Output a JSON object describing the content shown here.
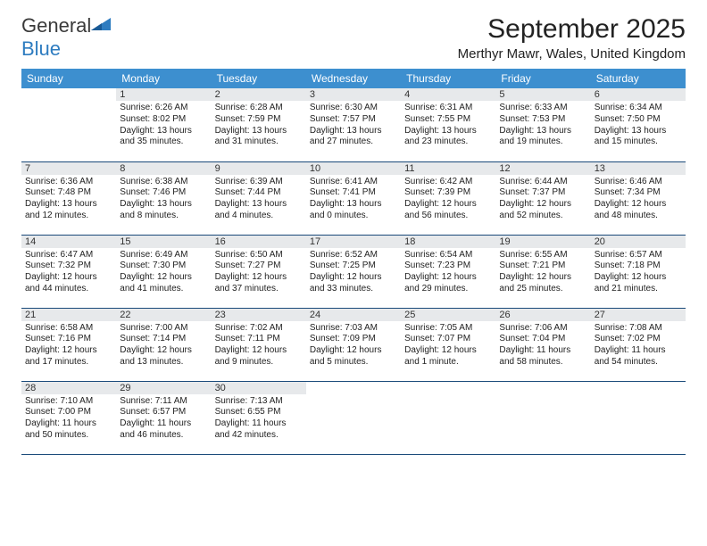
{
  "logo": {
    "word1": "General",
    "word2": "Blue",
    "color1": "#3a3a3a",
    "color2": "#2e7cc0",
    "tri_color": "#2e7cc0"
  },
  "title": "September 2025",
  "location": "Merthyr Mawr, Wales, United Kingdom",
  "columns": [
    "Sunday",
    "Monday",
    "Tuesday",
    "Wednesday",
    "Thursday",
    "Friday",
    "Saturday"
  ],
  "header_bg": "#3d8fcf",
  "header_fg": "#ffffff",
  "daynum_bg": "#e7e9eb",
  "row_border": "#1a4a7a",
  "weeks": [
    [
      {
        "blank": true
      },
      {
        "n": "1",
        "sr": "6:26 AM",
        "ss": "8:02 PM",
        "dl": "13 hours and 35 minutes."
      },
      {
        "n": "2",
        "sr": "6:28 AM",
        "ss": "7:59 PM",
        "dl": "13 hours and 31 minutes."
      },
      {
        "n": "3",
        "sr": "6:30 AM",
        "ss": "7:57 PM",
        "dl": "13 hours and 27 minutes."
      },
      {
        "n": "4",
        "sr": "6:31 AM",
        "ss": "7:55 PM",
        "dl": "13 hours and 23 minutes."
      },
      {
        "n": "5",
        "sr": "6:33 AM",
        "ss": "7:53 PM",
        "dl": "13 hours and 19 minutes."
      },
      {
        "n": "6",
        "sr": "6:34 AM",
        "ss": "7:50 PM",
        "dl": "13 hours and 15 minutes."
      }
    ],
    [
      {
        "n": "7",
        "sr": "6:36 AM",
        "ss": "7:48 PM",
        "dl": "13 hours and 12 minutes."
      },
      {
        "n": "8",
        "sr": "6:38 AM",
        "ss": "7:46 PM",
        "dl": "13 hours and 8 minutes."
      },
      {
        "n": "9",
        "sr": "6:39 AM",
        "ss": "7:44 PM",
        "dl": "13 hours and 4 minutes."
      },
      {
        "n": "10",
        "sr": "6:41 AM",
        "ss": "7:41 PM",
        "dl": "13 hours and 0 minutes."
      },
      {
        "n": "11",
        "sr": "6:42 AM",
        "ss": "7:39 PM",
        "dl": "12 hours and 56 minutes."
      },
      {
        "n": "12",
        "sr": "6:44 AM",
        "ss": "7:37 PM",
        "dl": "12 hours and 52 minutes."
      },
      {
        "n": "13",
        "sr": "6:46 AM",
        "ss": "7:34 PM",
        "dl": "12 hours and 48 minutes."
      }
    ],
    [
      {
        "n": "14",
        "sr": "6:47 AM",
        "ss": "7:32 PM",
        "dl": "12 hours and 44 minutes."
      },
      {
        "n": "15",
        "sr": "6:49 AM",
        "ss": "7:30 PM",
        "dl": "12 hours and 41 minutes."
      },
      {
        "n": "16",
        "sr": "6:50 AM",
        "ss": "7:27 PM",
        "dl": "12 hours and 37 minutes."
      },
      {
        "n": "17",
        "sr": "6:52 AM",
        "ss": "7:25 PM",
        "dl": "12 hours and 33 minutes."
      },
      {
        "n": "18",
        "sr": "6:54 AM",
        "ss": "7:23 PM",
        "dl": "12 hours and 29 minutes."
      },
      {
        "n": "19",
        "sr": "6:55 AM",
        "ss": "7:21 PM",
        "dl": "12 hours and 25 minutes."
      },
      {
        "n": "20",
        "sr": "6:57 AM",
        "ss": "7:18 PM",
        "dl": "12 hours and 21 minutes."
      }
    ],
    [
      {
        "n": "21",
        "sr": "6:58 AM",
        "ss": "7:16 PM",
        "dl": "12 hours and 17 minutes."
      },
      {
        "n": "22",
        "sr": "7:00 AM",
        "ss": "7:14 PM",
        "dl": "12 hours and 13 minutes."
      },
      {
        "n": "23",
        "sr": "7:02 AM",
        "ss": "7:11 PM",
        "dl": "12 hours and 9 minutes."
      },
      {
        "n": "24",
        "sr": "7:03 AM",
        "ss": "7:09 PM",
        "dl": "12 hours and 5 minutes."
      },
      {
        "n": "25",
        "sr": "7:05 AM",
        "ss": "7:07 PM",
        "dl": "12 hours and 1 minute."
      },
      {
        "n": "26",
        "sr": "7:06 AM",
        "ss": "7:04 PM",
        "dl": "11 hours and 58 minutes."
      },
      {
        "n": "27",
        "sr": "7:08 AM",
        "ss": "7:02 PM",
        "dl": "11 hours and 54 minutes."
      }
    ],
    [
      {
        "n": "28",
        "sr": "7:10 AM",
        "ss": "7:00 PM",
        "dl": "11 hours and 50 minutes."
      },
      {
        "n": "29",
        "sr": "7:11 AM",
        "ss": "6:57 PM",
        "dl": "11 hours and 46 minutes."
      },
      {
        "n": "30",
        "sr": "7:13 AM",
        "ss": "6:55 PM",
        "dl": "11 hours and 42 minutes."
      },
      {
        "blank": true
      },
      {
        "blank": true
      },
      {
        "blank": true
      },
      {
        "blank": true
      }
    ]
  ]
}
